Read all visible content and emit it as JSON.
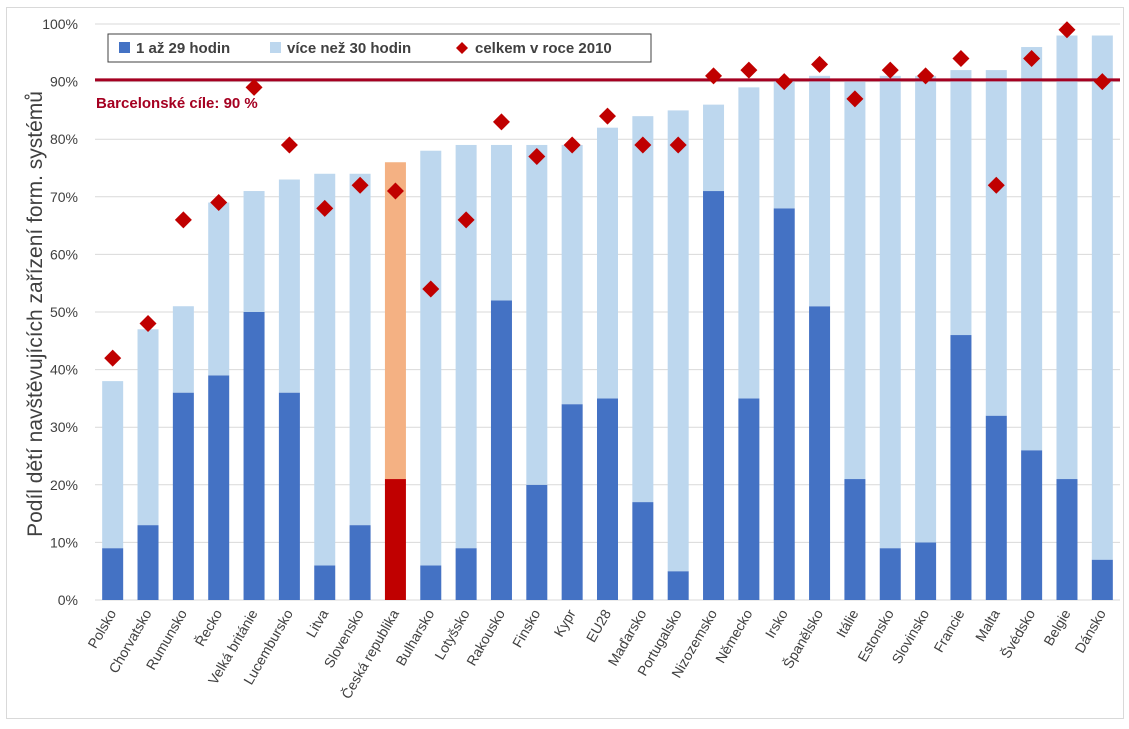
{
  "chart_data": {
    "type": "bar",
    "stacked": true,
    "ylabel": "Podíl dětí navštěvujících zařízení form. systémů",
    "xlabel": "",
    "ylim": [
      0,
      100
    ],
    "yticks": [
      "0%",
      "10%",
      "20%",
      "30%",
      "40%",
      "50%",
      "60%",
      "70%",
      "80%",
      "90%",
      "100%"
    ],
    "grid": true,
    "legend_position": "top-left",
    "categories": [
      "Polsko",
      "Chorvatsko",
      "Rumunsko",
      "Řecko",
      "Velká británie",
      "Lucembursko",
      "Litva",
      "Slovensko",
      "Česká republika",
      "Bulharsko",
      "Lotyšsko",
      "Rakousko",
      "Finsko",
      "Kypr",
      "EU28",
      "Maďarsko",
      "Portugalsko",
      "Nizozemsko",
      "Německo",
      "Irsko",
      "Španělsko",
      "Itálie",
      "Estonsko",
      "Slovinsko",
      "Francie",
      "Malta",
      "Švédsko",
      "Belgie",
      "Dánsko"
    ],
    "highlight_category": "Česká republika",
    "series": [
      {
        "name": "1 až 29 hodin",
        "kind": "bar",
        "color": "#4472c4",
        "highlight_color": "#c00000",
        "values": [
          9,
          13,
          36,
          39,
          50,
          36,
          6,
          13,
          21,
          6,
          9,
          52,
          20,
          34,
          35,
          17,
          5,
          71,
          35,
          68,
          51,
          21,
          9,
          10,
          46,
          32,
          26,
          21,
          7
        ]
      },
      {
        "name": "více než 30 hodin",
        "kind": "bar",
        "color": "#bdd7ee",
        "highlight_color": "#f4b183",
        "values": [
          29,
          34,
          15,
          30,
          21,
          37,
          68,
          61,
          55,
          72,
          70,
          27,
          59,
          45,
          47,
          67,
          80,
          15,
          54,
          22,
          40,
          69,
          82,
          81,
          46,
          60,
          70,
          77,
          91
        ]
      },
      {
        "name": "celkem v roce 2010",
        "kind": "marker",
        "color": "#c00000",
        "values": [
          42,
          48,
          66,
          69,
          89,
          79,
          68,
          72,
          71,
          54,
          66,
          83,
          77,
          79,
          84,
          79,
          79,
          91,
          92,
          90,
          93,
          87,
          92,
          91,
          94,
          72,
          94,
          99,
          90
        ]
      }
    ],
    "target_line": {
      "value": 90.3,
      "label": "Barcelonské cíle: 90 %",
      "color": "#a50021"
    }
  }
}
